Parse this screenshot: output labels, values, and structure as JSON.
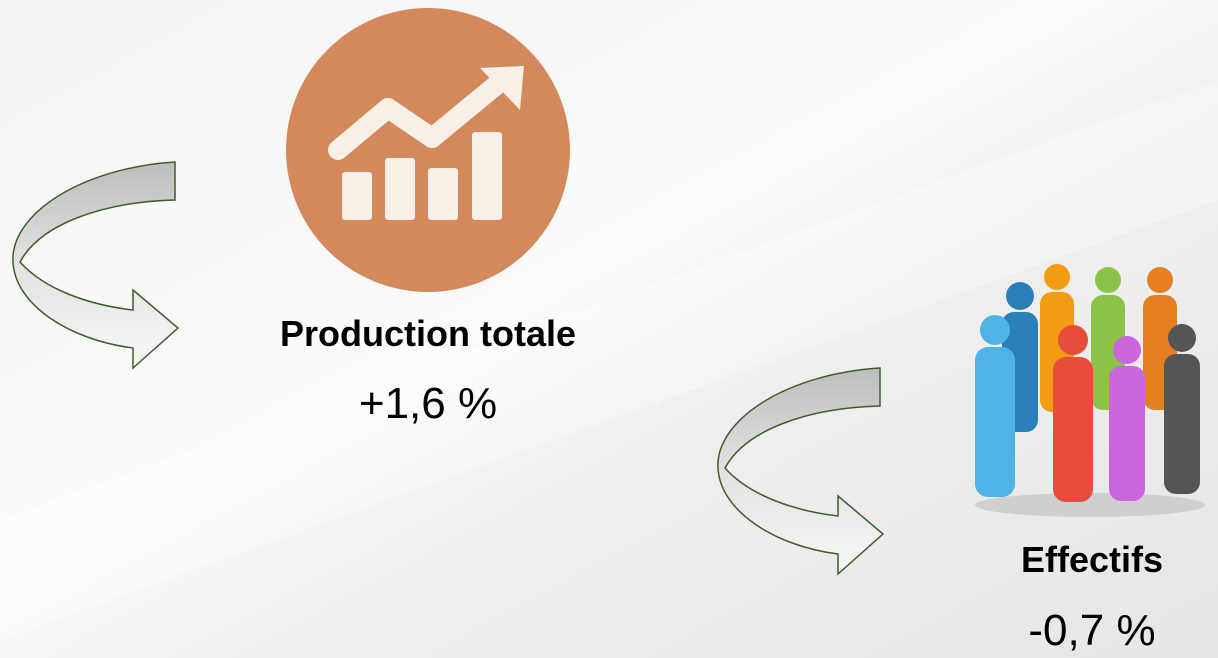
{
  "items": [
    {
      "label": "Production totale",
      "value": "+1,6 %"
    },
    {
      "label": "Effectifs",
      "value": "-0,7 %"
    }
  ]
}
